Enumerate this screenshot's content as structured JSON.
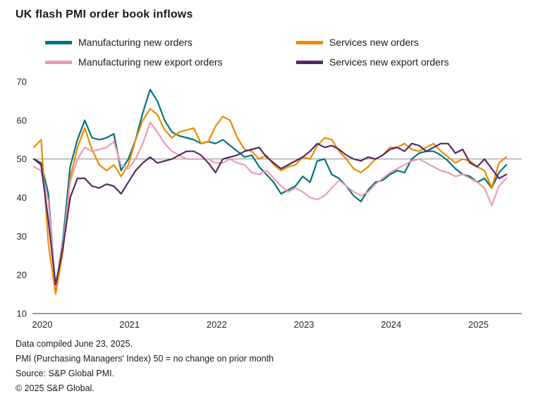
{
  "title": "UK flash PMI order book inflows",
  "legend": [
    {
      "label": "Manufacturing new orders",
      "color": "#00737E"
    },
    {
      "label": "Services new orders",
      "color": "#ED8B00"
    },
    {
      "label": "Manufacturing new export orders",
      "color": "#EC9CB0"
    },
    {
      "label": "Services new export orders",
      "color": "#552864"
    }
  ],
  "footer": {
    "line1": "Data compiled June 23, 2025.",
    "line2": "PMI (Purchasing Managers' Index) 50 = no change on prior month",
    "line3": "Source: S&P Global PMI.",
    "line4": "© 2025 S&P Global."
  },
  "chart_data": {
    "type": "line",
    "x_unit": "month",
    "x_range_note": "monthly values, January 2020 through June 2025",
    "x_tick_labels": [
      "2020",
      "2021",
      "2022",
      "2023",
      "2024",
      "2025"
    ],
    "ylim": [
      10,
      70
    ],
    "yticks": [
      10,
      20,
      30,
      40,
      50,
      60,
      70
    ],
    "reference_line": 50,
    "grid": "off",
    "legend_position": "top",
    "series": [
      {
        "name": "Manufacturing new orders",
        "color": "#00737E",
        "values": [
          50,
          49,
          41,
          16,
          29,
          48,
          55,
          60,
          55.5,
          55,
          55.5,
          56.5,
          47,
          50,
          55,
          62,
          68,
          65,
          60,
          57,
          56,
          55.5,
          55,
          54,
          54.5,
          54,
          55,
          53.5,
          52,
          50.5,
          51,
          48,
          46,
          44,
          41,
          42,
          43,
          45.5,
          44,
          49.5,
          50,
          46,
          45,
          43,
          40.5,
          39,
          42,
          44,
          44.5,
          46,
          47,
          46.5,
          50,
          51.5,
          52,
          52,
          51,
          49.5,
          47.5,
          46,
          45.5,
          44,
          45,
          42.5,
          46.5,
          48.5
        ]
      },
      {
        "name": "Services new orders",
        "color": "#ED8B00",
        "values": [
          53,
          55,
          28,
          15,
          26,
          45,
          53,
          58,
          52.5,
          48.5,
          47,
          48.5,
          45.5,
          48.5,
          55,
          60,
          63,
          61.5,
          57.5,
          55.5,
          57,
          57.5,
          58,
          54,
          54.5,
          58.5,
          61,
          60,
          55.5,
          52.5,
          52,
          50,
          51,
          48.5,
          47,
          48,
          48.5,
          50.5,
          50,
          53.5,
          55.5,
          55,
          52,
          50,
          47.5,
          46.5,
          48,
          50,
          51,
          53,
          53,
          54,
          52.5,
          52,
          53,
          54,
          52,
          50.5,
          49,
          50,
          49.5,
          48,
          47,
          42.5,
          49,
          50.5
        ]
      },
      {
        "name": "Manufacturing new export orders",
        "color": "#EC9CB0",
        "values": [
          48,
          47,
          39,
          17,
          28,
          44,
          50,
          53,
          52,
          52.5,
          53,
          54.5,
          48.5,
          47.5,
          50,
          54,
          59.5,
          57,
          54,
          52,
          51,
          50,
          50,
          50,
          50,
          49,
          49,
          50,
          49,
          48.5,
          46.5,
          46,
          47,
          45,
          43,
          41.5,
          42.5,
          41.5,
          40,
          39.5,
          40.5,
          42.5,
          44.5,
          43,
          41.5,
          40.5,
          41.5,
          43.5,
          45,
          46.5,
          47.5,
          48.5,
          49.5,
          50,
          49,
          48,
          47,
          46.5,
          45.5,
          46,
          45,
          44,
          42.5,
          38,
          43,
          45
        ]
      },
      {
        "name": "Services new export orders",
        "color": "#552864",
        "values": [
          50,
          48.5,
          34,
          17.5,
          27,
          40,
          45,
          45,
          43,
          42.5,
          43.5,
          43,
          41,
          44,
          47,
          49,
          50.5,
          49,
          49.5,
          50,
          51,
          52,
          52,
          51,
          49,
          46.5,
          50,
          50.5,
          51,
          52,
          52.5,
          53,
          50.5,
          49,
          47.5,
          48.5,
          49.5,
          50.5,
          52,
          54,
          53,
          53.5,
          52.5,
          51,
          50,
          49.5,
          50.5,
          50,
          51,
          52.5,
          53,
          52,
          54,
          53.5,
          52,
          53,
          54,
          54,
          51.5,
          52.5,
          49,
          48,
          50,
          47.5,
          45,
          46
        ]
      }
    ]
  }
}
